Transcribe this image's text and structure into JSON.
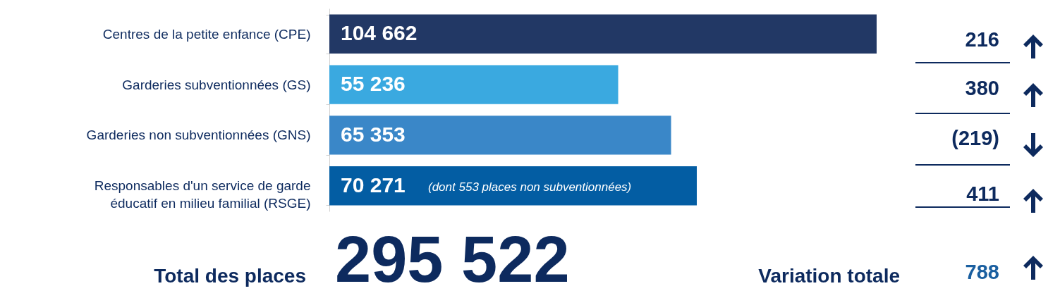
{
  "chart_data": {
    "type": "bar",
    "orientation": "horizontal",
    "categories": [
      "Centres de la petite enfance (CPE)",
      "Garderies subventionnées (GS)",
      "Garderies non subventionnées (GNS)",
      "Responsables d'un service de garde éducatif en milieu familial (RSGE)"
    ],
    "values": [
      104662,
      55236,
      65353,
      70271
    ],
    "colors": [
      "#223865",
      "#3aa9e0",
      "#3a87c8",
      "#035da3"
    ],
    "value_labels": [
      "104 662",
      "55 236",
      "65 353",
      "70 271"
    ],
    "annotations": [
      "(dont 553 places non subventionnées)",
      "216",
      "380",
      "(219)",
      "411",
      "Total des places",
      "295 522",
      "Variation totale",
      "788"
    ]
  }
}
